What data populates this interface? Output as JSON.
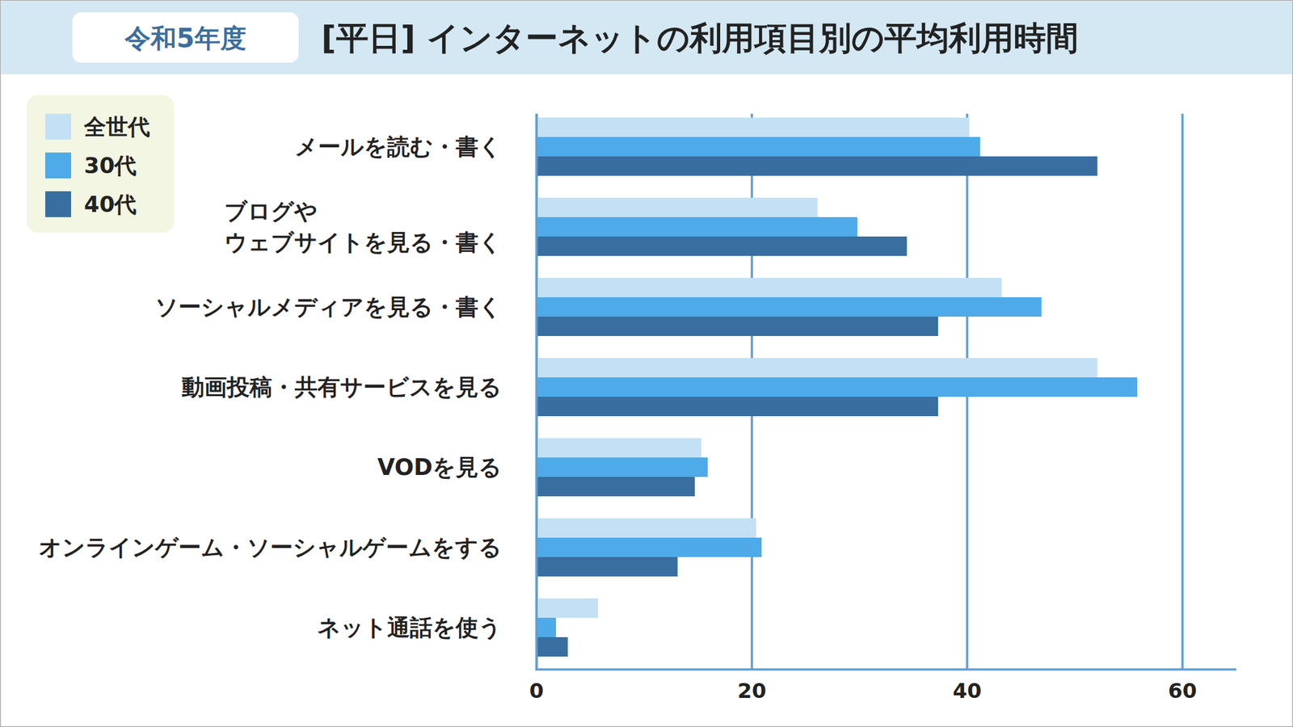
{
  "chart_data": {
    "type": "bar",
    "orientation": "horizontal",
    "title": "[平日] インターネットの利用項目別の平均利用時間",
    "subtitle": "令和5年度",
    "categories": [
      "メールを読む・書く",
      "ブログや\nウェブサイトを見る・書く",
      "ソーシャルメディアを見る・書く",
      "動画投稿・共有サービスを見る",
      "VODを見る",
      "オンラインゲーム・ソーシャルゲームをする",
      "ネット通話を使う"
    ],
    "series": [
      {
        "name": "全世代",
        "color": "#c3e0f4",
        "values": [
          40.2,
          26.1,
          43.2,
          52.1,
          15.3,
          20.4,
          5.7
        ]
      },
      {
        "name": "30代",
        "color": "#4eaae8",
        "values": [
          41.2,
          29.8,
          46.9,
          55.8,
          15.9,
          20.9,
          1.8
        ]
      },
      {
        "name": "40代",
        "color": "#386ea0",
        "values": [
          52.1,
          34.4,
          37.3,
          37.3,
          14.7,
          13.1,
          2.9
        ]
      }
    ],
    "xlim": [
      0,
      65
    ],
    "xticks": [
      0,
      20,
      40,
      60
    ],
    "grid": true,
    "legend": "top-left"
  }
}
